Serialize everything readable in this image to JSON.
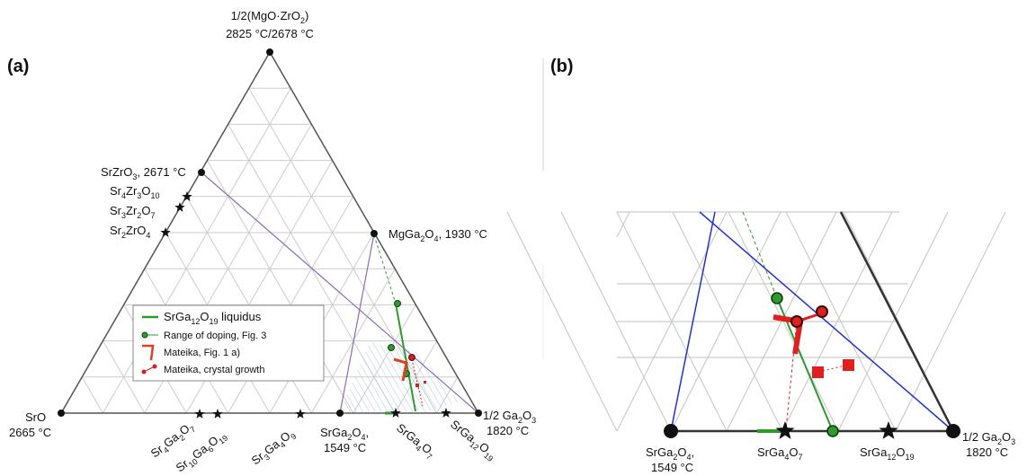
{
  "panel_a": {
    "label": "(a)",
    "apex": {
      "name": "1/2(MgO·ZrO2)",
      "temp": "2825 °C/2678 °C"
    },
    "left_corner": {
      "name": "SrO",
      "temp": "2665 °C"
    },
    "right_corner": {
      "name": "1/2 Ga2O3",
      "temp": "1820 °C"
    },
    "srzro3": {
      "name": "SrZrO3",
      "temp": ", 2671 °C"
    },
    "left_edge_phases": [
      "Sr4Zr3O10",
      "Sr3Zr2O7",
      "Sr2ZrO4"
    ],
    "mgga2o4": {
      "name": "MgGa2O4",
      "temp": ",  1930 °C"
    },
    "srga2o4": {
      "name": "SrGa2O4,",
      "temp": "1549 °C"
    },
    "bottom_phases": [
      "Sr4Ga2O7",
      "Sr10Ga6O19",
      "Sr3Ga4O9",
      "SrGa4O7",
      "SrGa12O19"
    ],
    "legend": [
      {
        "label": "SrGa12O19 liquidus"
      },
      {
        "label": "Range of doping, Fig. 3"
      },
      {
        "label": "Mateika, Fig. 1 a)"
      },
      {
        "label": "Mateika, crystal growth"
      }
    ]
  },
  "panel_b": {
    "label": "(b)",
    "srga2o4": {
      "name": "SrGa2O4,",
      "temp": "1549 °C"
    },
    "srga4o7": "SrGa4O7",
    "srga12o19": "SrGa12O19",
    "ga2o3": {
      "name": "1/2 Ga2O3",
      "temp": "1820 °C"
    }
  },
  "colors": {
    "grid": "#cccccc",
    "tie_line_a": "#8a6bb8",
    "tie_line_b": "#2233cc",
    "liquidus": "#2e9a2e",
    "mateika": "#e04020",
    "crystal": "#d02020",
    "hatch": "#a9cbe0"
  }
}
